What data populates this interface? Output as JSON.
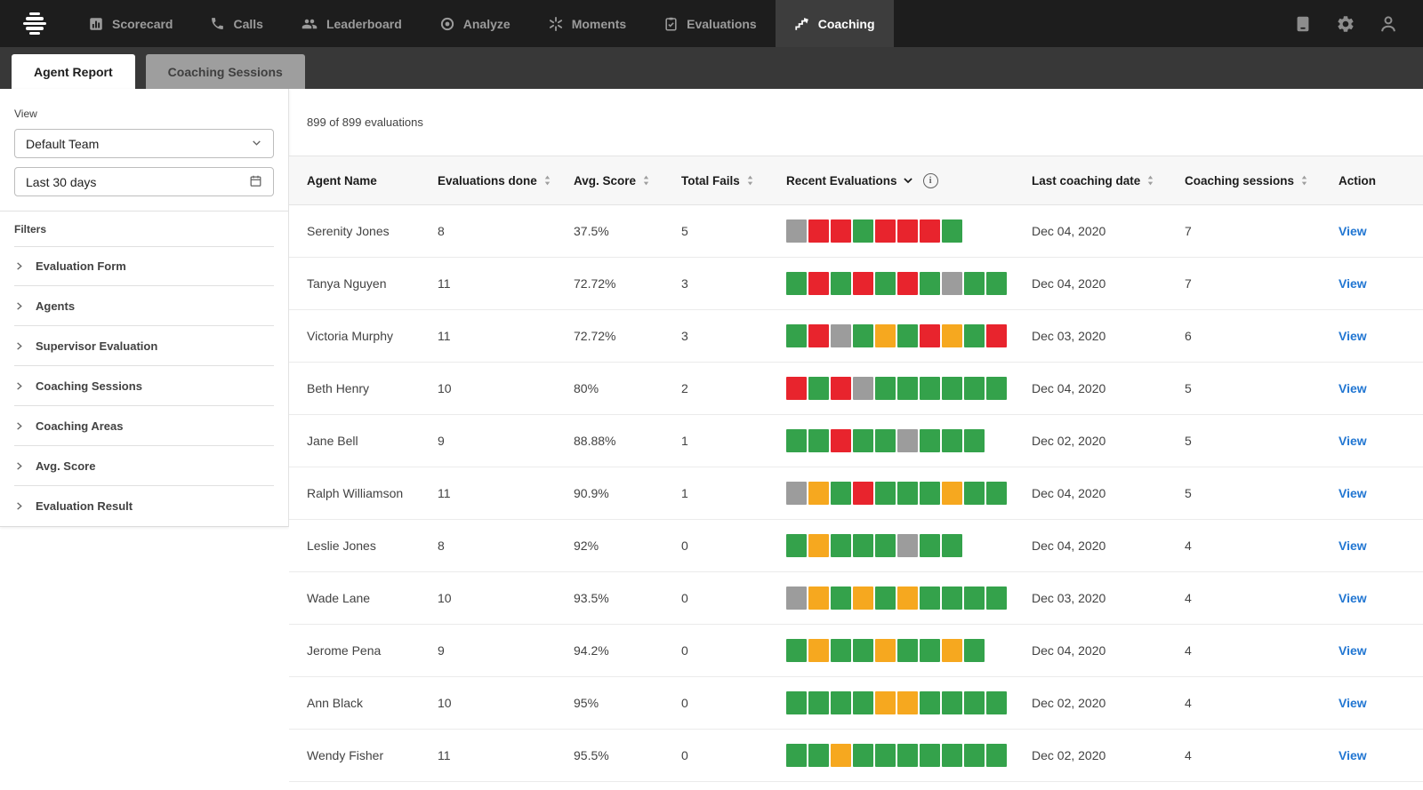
{
  "nav": {
    "items": [
      {
        "label": "Scorecard",
        "icon": "scorecard-icon"
      },
      {
        "label": "Calls",
        "icon": "phone-icon"
      },
      {
        "label": "Leaderboard",
        "icon": "people-icon"
      },
      {
        "label": "Analyze",
        "icon": "analyze-icon"
      },
      {
        "label": "Moments",
        "icon": "moments-icon"
      },
      {
        "label": "Evaluations",
        "icon": "evaluations-icon"
      },
      {
        "label": "Coaching",
        "icon": "coaching-icon"
      }
    ],
    "active_item": "Coaching"
  },
  "tabs": [
    {
      "label": "Agent Report",
      "active": true
    },
    {
      "label": "Coaching Sessions",
      "active": false
    }
  ],
  "sidebar": {
    "view_label": "View",
    "team_select_value": "Default Team",
    "date_range_value": "Last 30 days",
    "filters_label": "Filters",
    "filters": [
      "Evaluation Form",
      "Agents",
      "Supervisor Evaluation",
      "Coaching Sessions",
      "Coaching Areas",
      "Avg. Score",
      "Evaluation Result"
    ]
  },
  "main": {
    "summary": "899 of 899 evaluations",
    "columns": {
      "agent_name": "Agent Name",
      "evaluations_done": "Evaluations done",
      "avg_score": "Avg. Score",
      "total_fails": "Total Fails",
      "recent_evaluations": "Recent Evaluations",
      "last_coaching_date": "Last coaching date",
      "coaching_sessions": "Coaching sessions",
      "action": "Action"
    },
    "rows": [
      {
        "name": "Serenity Jones",
        "evaluations": "8",
        "avg_score": "37.5%",
        "fails": "5",
        "recent": [
          "gray",
          "red",
          "red",
          "green",
          "red",
          "red",
          "red",
          "green"
        ],
        "last_coaching": "Dec 04, 2020",
        "sessions": "7",
        "action": "View"
      },
      {
        "name": "Tanya Nguyen",
        "evaluations": "11",
        "avg_score": "72.72%",
        "fails": "3",
        "recent": [
          "green",
          "red",
          "green",
          "red",
          "green",
          "red",
          "green",
          "gray",
          "green",
          "green"
        ],
        "last_coaching": "Dec 04, 2020",
        "sessions": "7",
        "action": "View"
      },
      {
        "name": "Victoria Murphy",
        "evaluations": "11",
        "avg_score": "72.72%",
        "fails": "3",
        "recent": [
          "green",
          "red",
          "gray",
          "green",
          "orange",
          "green",
          "red",
          "orange",
          "green",
          "red"
        ],
        "last_coaching": "Dec 03, 2020",
        "sessions": "6",
        "action": "View"
      },
      {
        "name": "Beth Henry",
        "evaluations": "10",
        "avg_score": "80%",
        "fails": "2",
        "recent": [
          "red",
          "green",
          "red",
          "gray",
          "green",
          "green",
          "green",
          "green",
          "green",
          "green"
        ],
        "last_coaching": "Dec 04, 2020",
        "sessions": "5",
        "action": "View"
      },
      {
        "name": "Jane Bell",
        "evaluations": "9",
        "avg_score": "88.88%",
        "fails": "1",
        "recent": [
          "green",
          "green",
          "red",
          "green",
          "green",
          "gray",
          "green",
          "green",
          "green"
        ],
        "last_coaching": "Dec 02, 2020",
        "sessions": "5",
        "action": "View"
      },
      {
        "name": "Ralph Williamson",
        "evaluations": "11",
        "avg_score": "90.9%",
        "fails": "1",
        "recent": [
          "gray",
          "orange",
          "green",
          "red",
          "green",
          "green",
          "green",
          "orange",
          "green",
          "green"
        ],
        "last_coaching": "Dec 04, 2020",
        "sessions": "5",
        "action": "View"
      },
      {
        "name": "Leslie Jones",
        "evaluations": "8",
        "avg_score": "92%",
        "fails": "0",
        "recent": [
          "green",
          "orange",
          "green",
          "green",
          "green",
          "gray",
          "green",
          "green"
        ],
        "last_coaching": "Dec 04, 2020",
        "sessions": "4",
        "action": "View"
      },
      {
        "name": "Wade Lane",
        "evaluations": "10",
        "avg_score": "93.5%",
        "fails": "0",
        "recent": [
          "gray",
          "orange",
          "green",
          "orange",
          "green",
          "orange",
          "green",
          "green",
          "green",
          "green"
        ],
        "last_coaching": "Dec 03, 2020",
        "sessions": "4",
        "action": "View"
      },
      {
        "name": "Jerome Pena",
        "evaluations": "9",
        "avg_score": "94.2%",
        "fails": "0",
        "recent": [
          "green",
          "orange",
          "green",
          "green",
          "orange",
          "green",
          "green",
          "orange",
          "green"
        ],
        "last_coaching": "Dec 04, 2020",
        "sessions": "4",
        "action": "View"
      },
      {
        "name": "Ann Black",
        "evaluations": "10",
        "avg_score": "95%",
        "fails": "0",
        "recent": [
          "green",
          "green",
          "green",
          "green",
          "orange",
          "orange",
          "green",
          "green",
          "green",
          "green"
        ],
        "last_coaching": "Dec 02, 2020",
        "sessions": "4",
        "action": "View"
      },
      {
        "name": "Wendy Fisher",
        "evaluations": "11",
        "avg_score": "95.5%",
        "fails": "0",
        "recent": [
          "green",
          "green",
          "orange",
          "green",
          "green",
          "green",
          "green",
          "green",
          "green",
          "green"
        ],
        "last_coaching": "Dec 02, 2020",
        "sessions": "4",
        "action": "View"
      }
    ]
  },
  "colors": {
    "green": "#34a24b",
    "red": "#e8242d",
    "orange": "#f6a81f",
    "gray": "#9c9c9c",
    "link_blue": "#2176d2",
    "nav_bg": "#1d1d1d",
    "nav_active_bg": "#3d3d3d",
    "tabstrip_bg": "#383838",
    "inactive_tab_bg": "#9e9e9e"
  },
  "info": {
    "i_glyph": "i"
  }
}
